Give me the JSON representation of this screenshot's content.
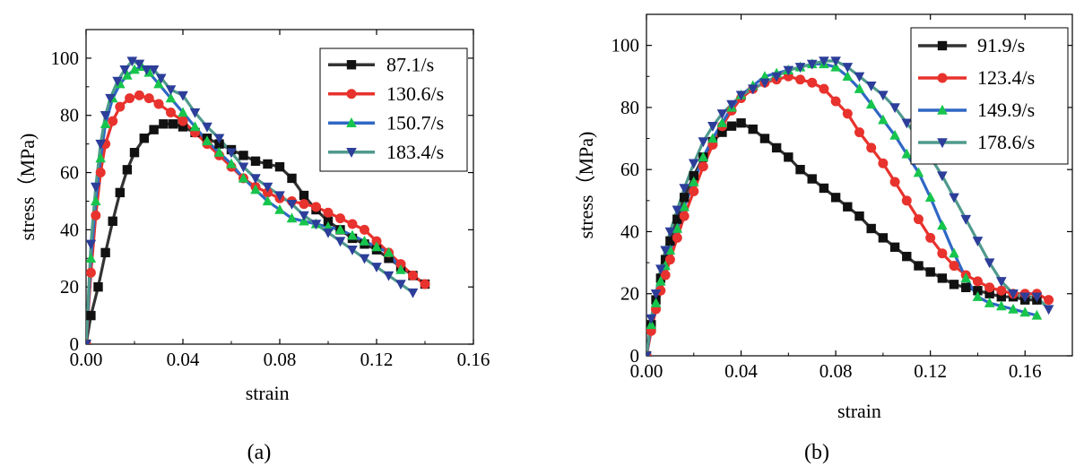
{
  "colors": {
    "axis": "#000000",
    "series": [
      "#333333",
      "#e8322d",
      "#2f67c4",
      "#4f9a8c"
    ],
    "markers": [
      "#111111",
      "#e8322d",
      "#17c54d",
      "#2c3e99"
    ]
  },
  "chart_data": [
    {
      "type": "line",
      "caption": "(a)",
      "xlabel": "strain",
      "ylabel": "stress（MPa)",
      "xlim": [
        0,
        0.16
      ],
      "ylim": [
        0,
        110
      ],
      "xticks": [
        0.0,
        0.04,
        0.08,
        0.12,
        0.16
      ],
      "xtick_labels": [
        "0.00",
        "0.04",
        "0.08",
        "0.12",
        "0.16"
      ],
      "yticks": [
        0,
        20,
        40,
        60,
        80,
        100
      ],
      "ytick_labels": [
        "0",
        "20",
        "40",
        "60",
        "80",
        "100"
      ],
      "legend_position": "top-right",
      "grid": false,
      "series": [
        {
          "name": "87.1/s",
          "marker": "square",
          "x": [
            0.0,
            0.002,
            0.005,
            0.008,
            0.011,
            0.014,
            0.017,
            0.02,
            0.024,
            0.028,
            0.032,
            0.036,
            0.04,
            0.045,
            0.05,
            0.055,
            0.06,
            0.065,
            0.07,
            0.075,
            0.08,
            0.085,
            0.09,
            0.095,
            0.1,
            0.105,
            0.11,
            0.115,
            0.12,
            0.125,
            0.13,
            0.135,
            0.14
          ],
          "y": [
            0,
            10,
            20,
            32,
            43,
            53,
            61,
            67,
            72,
            75,
            77,
            77,
            76,
            74,
            72,
            70,
            68,
            66,
            64,
            63,
            62,
            58,
            52,
            47,
            43,
            40,
            37,
            35,
            33,
            30,
            27,
            24,
            21
          ]
        },
        {
          "name": "130.6/s",
          "marker": "circle",
          "x": [
            0.0,
            0.002,
            0.004,
            0.006,
            0.008,
            0.011,
            0.014,
            0.018,
            0.022,
            0.026,
            0.03,
            0.035,
            0.04,
            0.045,
            0.05,
            0.055,
            0.06,
            0.065,
            0.07,
            0.075,
            0.08,
            0.085,
            0.09,
            0.095,
            0.1,
            0.105,
            0.11,
            0.115,
            0.12,
            0.125,
            0.13,
            0.135,
            0.14
          ],
          "y": [
            0,
            25,
            45,
            60,
            70,
            78,
            83,
            86,
            87,
            86,
            84,
            81,
            78,
            74,
            70,
            66,
            62,
            58,
            55,
            53,
            51,
            50,
            49,
            48,
            46,
            44,
            42,
            40,
            36,
            32,
            28,
            24,
            21
          ]
        },
        {
          "name": "150.7/s",
          "marker": "triangle-up",
          "x": [
            0.0,
            0.002,
            0.004,
            0.006,
            0.008,
            0.011,
            0.014,
            0.017,
            0.02,
            0.023,
            0.026,
            0.03,
            0.035,
            0.04,
            0.045,
            0.05,
            0.055,
            0.06,
            0.065,
            0.07,
            0.075,
            0.08,
            0.085,
            0.09,
            0.095,
            0.1,
            0.105,
            0.11,
            0.115,
            0.12,
            0.125,
            0.13
          ],
          "y": [
            0,
            30,
            50,
            65,
            77,
            86,
            91,
            94,
            96,
            97,
            95,
            91,
            86,
            81,
            76,
            71,
            67,
            63,
            58,
            54,
            50,
            47,
            44,
            43,
            42,
            41,
            40,
            38,
            36,
            34,
            32,
            26
          ]
        },
        {
          "name": "183.4/s",
          "marker": "triangle-down",
          "x": [
            0.0,
            0.002,
            0.004,
            0.006,
            0.008,
            0.01,
            0.013,
            0.016,
            0.019,
            0.022,
            0.025,
            0.028,
            0.031,
            0.035,
            0.04,
            0.045,
            0.05,
            0.055,
            0.06,
            0.065,
            0.07,
            0.075,
            0.08,
            0.085,
            0.09,
            0.095,
            0.1,
            0.105,
            0.11,
            0.115,
            0.12,
            0.125,
            0.13,
            0.135
          ],
          "y": [
            0,
            35,
            55,
            70,
            80,
            86,
            92,
            96,
            99,
            98,
            96,
            96,
            93,
            89,
            87,
            81,
            76,
            72,
            67,
            62,
            58,
            55,
            52,
            49,
            45,
            42,
            39,
            36,
            33,
            30,
            27,
            24,
            21,
            18
          ]
        }
      ]
    },
    {
      "type": "line",
      "caption": "(b)",
      "xlabel": "strain",
      "ylabel": "stress（MPa)",
      "xlim": [
        0,
        0.18
      ],
      "ylim": [
        0,
        110
      ],
      "xticks": [
        0.0,
        0.04,
        0.08,
        0.12,
        0.16
      ],
      "xtick_labels": [
        "0.00",
        "0.04",
        "0.08",
        "0.12",
        "0.16"
      ],
      "yticks": [
        0,
        20,
        40,
        60,
        80,
        100
      ],
      "ytick_labels": [
        "0",
        "20",
        "40",
        "60",
        "80",
        "100"
      ],
      "legend_position": "top-right",
      "grid": false,
      "series": [
        {
          "name": "91.9/s",
          "marker": "square",
          "x": [
            0.0,
            0.002,
            0.004,
            0.006,
            0.008,
            0.01,
            0.013,
            0.016,
            0.02,
            0.024,
            0.028,
            0.032,
            0.036,
            0.04,
            0.045,
            0.05,
            0.055,
            0.06,
            0.065,
            0.07,
            0.075,
            0.08,
            0.085,
            0.09,
            0.095,
            0.1,
            0.105,
            0.11,
            0.115,
            0.12,
            0.125,
            0.13,
            0.135,
            0.14,
            0.145,
            0.15,
            0.155,
            0.16,
            0.165
          ],
          "y": [
            0,
            10,
            18,
            25,
            31,
            37,
            44,
            51,
            58,
            64,
            69,
            72,
            74,
            75,
            73,
            70,
            67,
            64,
            60,
            57,
            54,
            51,
            48,
            45,
            41,
            38,
            35,
            32,
            29,
            27,
            25,
            23,
            22,
            21,
            20,
            19,
            19,
            18,
            18
          ]
        },
        {
          "name": "123.4/s",
          "marker": "circle",
          "x": [
            0.0,
            0.002,
            0.004,
            0.006,
            0.008,
            0.01,
            0.013,
            0.016,
            0.02,
            0.024,
            0.028,
            0.032,
            0.036,
            0.04,
            0.045,
            0.05,
            0.055,
            0.06,
            0.065,
            0.07,
            0.075,
            0.08,
            0.085,
            0.09,
            0.095,
            0.1,
            0.105,
            0.11,
            0.115,
            0.12,
            0.125,
            0.13,
            0.135,
            0.14,
            0.145,
            0.15,
            0.155,
            0.16,
            0.165,
            0.17
          ],
          "y": [
            0,
            8,
            15,
            21,
            26,
            31,
            38,
            45,
            53,
            61,
            68,
            74,
            79,
            83,
            86,
            88,
            89,
            90,
            89,
            88,
            86,
            82,
            78,
            72,
            67,
            62,
            56,
            50,
            44,
            38,
            33,
            29,
            26,
            24,
            22,
            21,
            20,
            20,
            20,
            18
          ]
        },
        {
          "name": "149.9/s",
          "marker": "triangle-up",
          "x": [
            0.0,
            0.002,
            0.004,
            0.006,
            0.008,
            0.01,
            0.013,
            0.016,
            0.02,
            0.024,
            0.028,
            0.032,
            0.036,
            0.04,
            0.045,
            0.05,
            0.055,
            0.06,
            0.065,
            0.07,
            0.075,
            0.08,
            0.085,
            0.09,
            0.095,
            0.1,
            0.105,
            0.11,
            0.115,
            0.12,
            0.125,
            0.13,
            0.135,
            0.14,
            0.145,
            0.15,
            0.155,
            0.16,
            0.165
          ],
          "y": [
            0,
            10,
            17,
            24,
            29,
            34,
            41,
            48,
            56,
            64,
            70,
            75,
            80,
            84,
            87,
            90,
            91,
            92,
            93,
            94,
            94,
            93,
            90,
            86,
            81,
            76,
            71,
            65,
            59,
            51,
            42,
            33,
            25,
            19,
            17,
            16,
            15,
            14,
            13
          ]
        },
        {
          "name": "178.6/s",
          "marker": "triangle-down",
          "x": [
            0.0,
            0.002,
            0.004,
            0.006,
            0.008,
            0.01,
            0.013,
            0.016,
            0.02,
            0.024,
            0.028,
            0.032,
            0.036,
            0.04,
            0.045,
            0.05,
            0.055,
            0.06,
            0.065,
            0.07,
            0.075,
            0.08,
            0.085,
            0.09,
            0.095,
            0.1,
            0.105,
            0.11,
            0.115,
            0.12,
            0.125,
            0.13,
            0.135,
            0.14,
            0.145,
            0.15,
            0.155,
            0.16,
            0.165,
            0.17
          ],
          "y": [
            0,
            12,
            20,
            28,
            34,
            40,
            47,
            54,
            62,
            69,
            74,
            78,
            81,
            84,
            86,
            88,
            90,
            92,
            93,
            94,
            95,
            95,
            93,
            90,
            87,
            84,
            80,
            75,
            70,
            64,
            58,
            51,
            44,
            37,
            30,
            24,
            20,
            19,
            19,
            15
          ]
        }
      ]
    }
  ]
}
